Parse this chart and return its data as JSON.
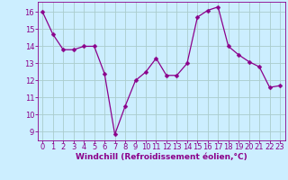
{
  "x": [
    0,
    1,
    2,
    3,
    4,
    5,
    6,
    7,
    8,
    9,
    10,
    11,
    12,
    13,
    14,
    15,
    16,
    17,
    18,
    19,
    20,
    21,
    22,
    23
  ],
  "y": [
    16.0,
    14.7,
    13.8,
    13.8,
    14.0,
    14.0,
    12.4,
    8.85,
    10.5,
    12.0,
    12.5,
    13.3,
    12.3,
    12.3,
    13.0,
    15.7,
    16.1,
    16.3,
    14.0,
    13.5,
    13.1,
    12.8,
    11.6,
    11.7
  ],
  "line_color": "#8b008b",
  "marker": "D",
  "marker_size": 2.5,
  "bg_color": "#cceeff",
  "grid_color": "#aacccc",
  "axis_color": "#8b008b",
  "tick_color": "#8b008b",
  "xlabel": "Windchill (Refroidissement éolien,°C)",
  "xlim": [
    -0.5,
    23.5
  ],
  "ylim": [
    8.5,
    16.6
  ],
  "yticks": [
    9,
    10,
    11,
    12,
    13,
    14,
    15,
    16
  ],
  "xticks": [
    0,
    1,
    2,
    3,
    4,
    5,
    6,
    7,
    8,
    9,
    10,
    11,
    12,
    13,
    14,
    15,
    16,
    17,
    18,
    19,
    20,
    21,
    22,
    23
  ],
  "label_fontsize": 6.5,
  "tick_fontsize": 6.0
}
